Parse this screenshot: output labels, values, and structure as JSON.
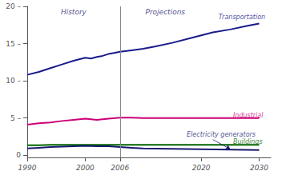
{
  "chart_data": {
    "type": "line",
    "xlim": [
      1990,
      2032
    ],
    "ylim": [
      -0.3,
      20
    ],
    "xticks": [
      1990,
      2000,
      2006,
      2020,
      2030
    ],
    "yticks": [
      0,
      {
        "value": 5,
        "label": "5 –"
      },
      {
        "value": 10,
        "label": "10 –"
      },
      {
        "value": 15,
        "label": "15 –"
      },
      {
        "value": 20,
        "label": "20 –"
      }
    ],
    "grid": false,
    "series": [
      {
        "color": "#1a1a8c",
        "x": [
          1990,
          1992,
          1994,
          1996,
          1998,
          2000,
          2001,
          2002,
          2003,
          2004,
          2005,
          2006,
          2008,
          2010,
          2012,
          2015,
          2018,
          2020,
          2022,
          2025,
          2028,
          2030
        ],
        "values": [
          10.8,
          11.2,
          11.7,
          12.2,
          12.7,
          13.1,
          13.0,
          13.2,
          13.35,
          13.6,
          13.75,
          13.9,
          14.1,
          14.3,
          14.6,
          15.1,
          15.7,
          16.1,
          16.5,
          16.9,
          17.4,
          17.7
        ]
      },
      {
        "color": "#cc0077",
        "x": [
          1990,
          1992,
          1994,
          1996,
          1998,
          2000,
          2002,
          2004,
          2006,
          2008,
          2010,
          2015,
          2020,
          2025,
          2030
        ],
        "values": [
          4.1,
          4.3,
          4.4,
          4.6,
          4.75,
          4.9,
          4.75,
          4.9,
          5.05,
          5.05,
          5.0,
          5.0,
          5.0,
          5.0,
          5.0
        ]
      },
      {
        "color": "#006400",
        "x": [
          1990,
          1992,
          1994,
          1996,
          1998,
          2000,
          2002,
          2004,
          2006,
          2008,
          2010,
          2015,
          2020,
          2025,
          2030
        ],
        "values": [
          1.35,
          1.35,
          1.38,
          1.4,
          1.38,
          1.4,
          1.38,
          1.4,
          1.38,
          1.38,
          1.38,
          1.38,
          1.38,
          1.38,
          1.38
        ]
      },
      {
        "color": "#191970",
        "x": [
          1990,
          1992,
          1994,
          1996,
          1998,
          2000,
          2002,
          2004,
          2006,
          2008,
          2010,
          2015,
          2020,
          2025,
          2030
        ],
        "values": [
          0.9,
          1.0,
          1.1,
          1.15,
          1.2,
          1.25,
          1.2,
          1.2,
          1.1,
          1.0,
          0.9,
          0.85,
          0.8,
          0.75,
          0.7
        ]
      }
    ],
    "annotations": [
      {
        "text": "Transportation",
        "x": 2023,
        "y": 18.5,
        "color": "#1a1a8c"
      },
      {
        "text": "Industrial",
        "x": 2025.5,
        "y": 5.3,
        "color": "#cc0077"
      },
      {
        "text": "Buildings",
        "x": 2025.5,
        "y": 1.75,
        "color": "#006400"
      },
      {
        "text": "Electricity generators",
        "x": 2017.5,
        "y": 2.35,
        "color": "#191970",
        "arrow_from": [
          2022,
          2.1
        ],
        "arrow_to": [
          2025,
          0.82
        ]
      }
    ],
    "divider": {
      "x": 2006,
      "labels": [
        "History",
        "Projections"
      ],
      "color": "#191970"
    }
  }
}
